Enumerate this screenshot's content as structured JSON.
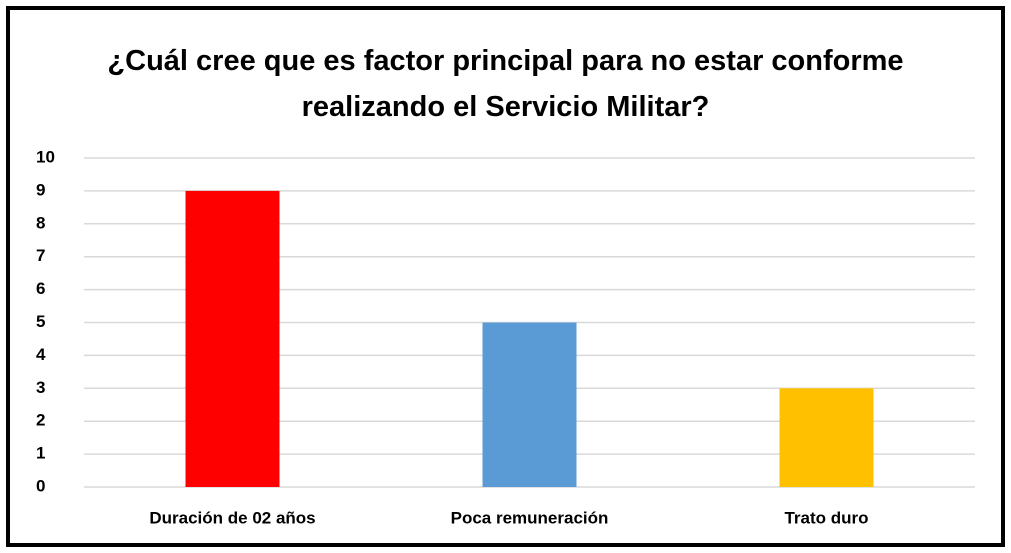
{
  "chart_data": {
    "type": "bar",
    "title": "¿Cuál cree que es factor principal para no estar conforme realizando el Servicio Militar?",
    "categories": [
      "Duración de 02 años",
      "Poca remuneración",
      "Trato duro"
    ],
    "values": [
      9,
      5,
      3
    ],
    "colors": [
      "#ff0000",
      "#5b9bd5",
      "#ffc000"
    ],
    "ylim": [
      0,
      10
    ],
    "yticks": [
      0,
      1,
      2,
      3,
      4,
      5,
      6,
      7,
      8,
      9,
      10
    ],
    "grid": true
  }
}
